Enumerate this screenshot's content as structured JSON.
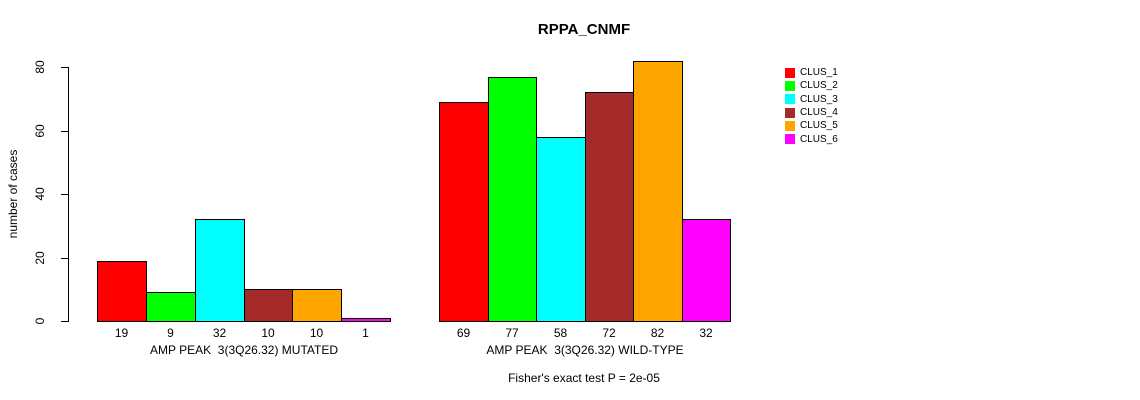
{
  "chart_data": {
    "type": "bar",
    "title": "RPPA_CNMF",
    "ylabel": "number of cases",
    "ylim": [
      0,
      80
    ],
    "yticks": [
      0,
      20,
      40,
      60,
      80
    ],
    "grid": false,
    "show_value_labels": true,
    "legend_position": "right",
    "clusters": [
      {
        "name": "CLUS_1",
        "color": "#FF0000"
      },
      {
        "name": "CLUS_2",
        "color": "#00FF00"
      },
      {
        "name": "CLUS_3",
        "color": "#00FFFF"
      },
      {
        "name": "CLUS_4",
        "color": "#A52A2A"
      },
      {
        "name": "CLUS_5",
        "color": "#FFA500"
      },
      {
        "name": "CLUS_6",
        "color": "#FF00FF"
      }
    ],
    "groups": [
      {
        "label": "AMP PEAK  3(3Q26.32) MUTATED",
        "values": [
          19,
          9,
          32,
          10,
          10,
          1
        ]
      },
      {
        "label": "AMP PEAK  3(3Q26.32) WILD-TYPE",
        "values": [
          69,
          77,
          58,
          72,
          82,
          32
        ]
      }
    ],
    "annotation": "Fisher's exact test P = 2e-05"
  }
}
